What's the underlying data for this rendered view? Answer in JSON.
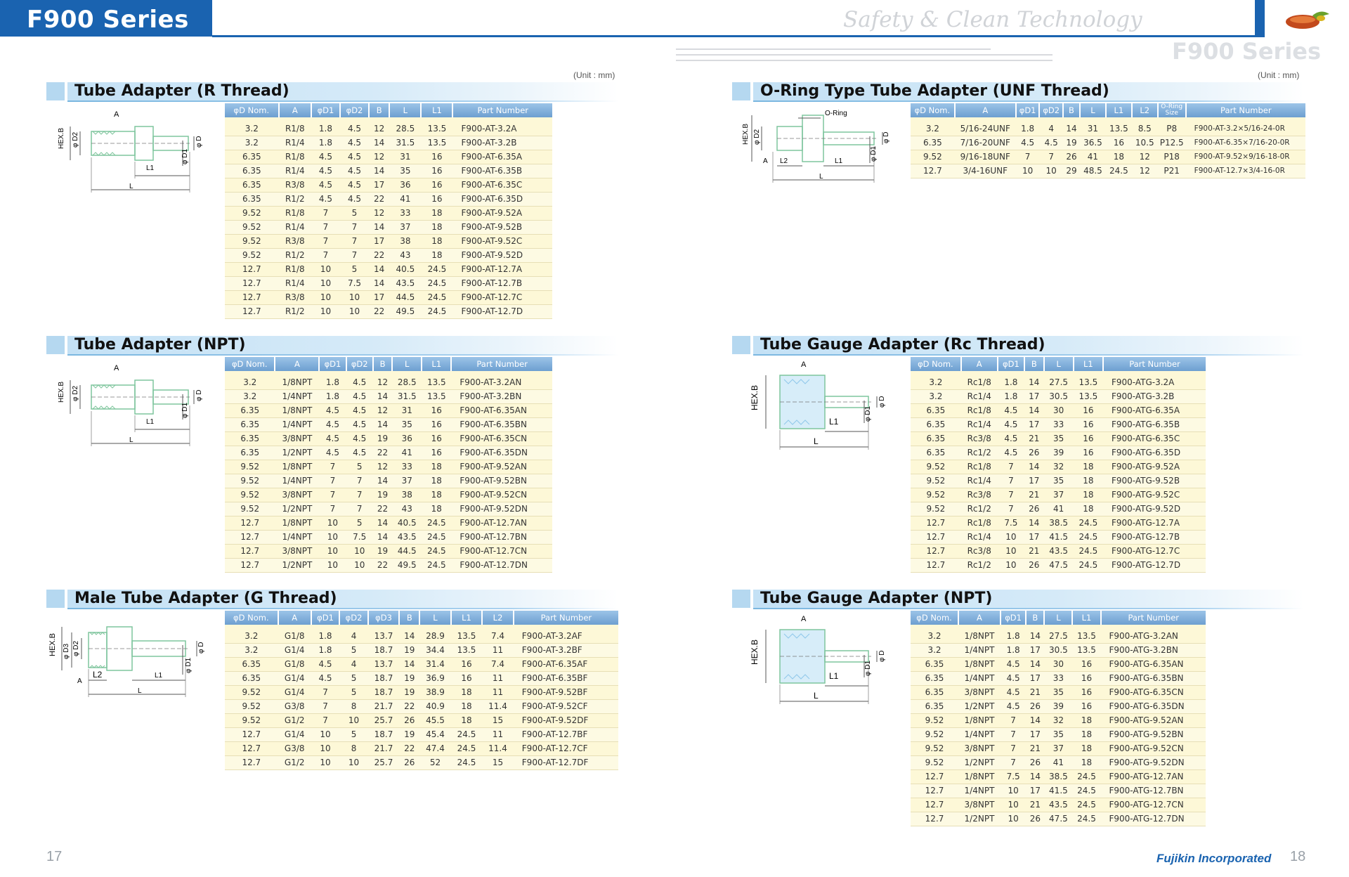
{
  "header": {
    "series_label": "F900 Series",
    "tagline": "Safety & Clean Technology",
    "side_title": "F900 Series",
    "colors": {
      "brand_blue": "#1a63b0",
      "section_band": "#c4e1f5",
      "table_row": "#fdf8d7"
    }
  },
  "units": {
    "left": "(Unit : mm)",
    "right": "(Unit : mm)"
  },
  "footer": {
    "page_left": "17",
    "page_right": "18",
    "brand": "Fujikin Incorporated"
  },
  "sections": {
    "r_thread": {
      "title": "Tube Adapter (R Thread)",
      "diagram_labels": {
        "a": "A",
        "hexb": "HEX.B",
        "d2": "φ D2",
        "d": "φ D",
        "d1": "φ D1",
        "l1": "L1",
        "l": "L"
      },
      "headers": [
        "φD Nom.",
        "A",
        "φD1",
        "φD2",
        "B",
        "L",
        "L1",
        "Part Number"
      ],
      "rows": [
        [
          "3.2",
          "R1/8",
          "1.8",
          "4.5",
          "12",
          "28.5",
          "13.5",
          "F900-AT-3.2A"
        ],
        [
          "3.2",
          "R1/4",
          "1.8",
          "4.5",
          "14",
          "31.5",
          "13.5",
          "F900-AT-3.2B"
        ],
        [
          "6.35",
          "R1/8",
          "4.5",
          "4.5",
          "12",
          "31",
          "16",
          "F900-AT-6.35A"
        ],
        [
          "6.35",
          "R1/4",
          "4.5",
          "4.5",
          "14",
          "35",
          "16",
          "F900-AT-6.35B"
        ],
        [
          "6.35",
          "R3/8",
          "4.5",
          "4.5",
          "17",
          "36",
          "16",
          "F900-AT-6.35C"
        ],
        [
          "6.35",
          "R1/2",
          "4.5",
          "4.5",
          "22",
          "41",
          "16",
          "F900-AT-6.35D"
        ],
        [
          "9.52",
          "R1/8",
          "7",
          "5",
          "12",
          "33",
          "18",
          "F900-AT-9.52A"
        ],
        [
          "9.52",
          "R1/4",
          "7",
          "7",
          "14",
          "37",
          "18",
          "F900-AT-9.52B"
        ],
        [
          "9.52",
          "R3/8",
          "7",
          "7",
          "17",
          "38",
          "18",
          "F900-AT-9.52C"
        ],
        [
          "9.52",
          "R1/2",
          "7",
          "7",
          "22",
          "43",
          "18",
          "F900-AT-9.52D"
        ],
        [
          "12.7",
          "R1/8",
          "10",
          "5",
          "14",
          "40.5",
          "24.5",
          "F900-AT-12.7A"
        ],
        [
          "12.7",
          "R1/4",
          "10",
          "7.5",
          "14",
          "43.5",
          "24.5",
          "F900-AT-12.7B"
        ],
        [
          "12.7",
          "R3/8",
          "10",
          "10",
          "17",
          "44.5",
          "24.5",
          "F900-AT-12.7C"
        ],
        [
          "12.7",
          "R1/2",
          "10",
          "10",
          "22",
          "49.5",
          "24.5",
          "F900-AT-12.7D"
        ]
      ]
    },
    "npt": {
      "title": "Tube Adapter (NPT)",
      "diagram_labels": {
        "a": "A",
        "hexb": "HEX.B",
        "d2": "φ D2",
        "d": "φ D",
        "d1": "φ D1",
        "l1": "L1",
        "l": "L"
      },
      "headers": [
        "φD Nom.",
        "A",
        "φD1",
        "φD2",
        "B",
        "L",
        "L1",
        "Part Number"
      ],
      "rows": [
        [
          "3.2",
          "1/8NPT",
          "1.8",
          "4.5",
          "12",
          "28.5",
          "13.5",
          "F900-AT-3.2AN"
        ],
        [
          "3.2",
          "1/4NPT",
          "1.8",
          "4.5",
          "14",
          "31.5",
          "13.5",
          "F900-AT-3.2BN"
        ],
        [
          "6.35",
          "1/8NPT",
          "4.5",
          "4.5",
          "12",
          "31",
          "16",
          "F900-AT-6.35AN"
        ],
        [
          "6.35",
          "1/4NPT",
          "4.5",
          "4.5",
          "14",
          "35",
          "16",
          "F900-AT-6.35BN"
        ],
        [
          "6.35",
          "3/8NPT",
          "4.5",
          "4.5",
          "19",
          "36",
          "16",
          "F900-AT-6.35CN"
        ],
        [
          "6.35",
          "1/2NPT",
          "4.5",
          "4.5",
          "22",
          "41",
          "16",
          "F900-AT-6.35DN"
        ],
        [
          "9.52",
          "1/8NPT",
          "7",
          "5",
          "12",
          "33",
          "18",
          "F900-AT-9.52AN"
        ],
        [
          "9.52",
          "1/4NPT",
          "7",
          "7",
          "14",
          "37",
          "18",
          "F900-AT-9.52BN"
        ],
        [
          "9.52",
          "3/8NPT",
          "7",
          "7",
          "19",
          "38",
          "18",
          "F900-AT-9.52CN"
        ],
        [
          "9.52",
          "1/2NPT",
          "7",
          "7",
          "22",
          "43",
          "18",
          "F900-AT-9.52DN"
        ],
        [
          "12.7",
          "1/8NPT",
          "10",
          "5",
          "14",
          "40.5",
          "24.5",
          "F900-AT-12.7AN"
        ],
        [
          "12.7",
          "1/4NPT",
          "10",
          "7.5",
          "14",
          "43.5",
          "24.5",
          "F900-AT-12.7BN"
        ],
        [
          "12.7",
          "3/8NPT",
          "10",
          "10",
          "19",
          "44.5",
          "24.5",
          "F900-AT-12.7CN"
        ],
        [
          "12.7",
          "1/2NPT",
          "10",
          "10",
          "22",
          "49.5",
          "24.5",
          "F900-AT-12.7DN"
        ]
      ]
    },
    "g_thread": {
      "title": "Male Tube Adapter (G Thread)",
      "diagram_labels": {
        "a": "A",
        "hexb": "HEX.B",
        "d3": "φ D3",
        "d2": "φ D2",
        "d": "φ D",
        "d1": "φ D1",
        "l2": "L2",
        "l1": "L1",
        "l": "L"
      },
      "headers": [
        "φD Nom.",
        "A",
        "φD1",
        "φD2",
        "φD3",
        "B",
        "L",
        "L1",
        "L2",
        "Part Number"
      ],
      "rows": [
        [
          "3.2",
          "G1/8",
          "1.8",
          "4",
          "13.7",
          "14",
          "28.9",
          "13.5",
          "7.4",
          "F900-AT-3.2AF"
        ],
        [
          "3.2",
          "G1/4",
          "1.8",
          "5",
          "18.7",
          "19",
          "34.4",
          "13.5",
          "11",
          "F900-AT-3.2BF"
        ],
        [
          "6.35",
          "G1/8",
          "4.5",
          "4",
          "13.7",
          "14",
          "31.4",
          "16",
          "7.4",
          "F900-AT-6.35AF"
        ],
        [
          "6.35",
          "G1/4",
          "4.5",
          "5",
          "18.7",
          "19",
          "36.9",
          "16",
          "11",
          "F900-AT-6.35BF"
        ],
        [
          "9.52",
          "G1/4",
          "7",
          "5",
          "18.7",
          "19",
          "38.9",
          "18",
          "11",
          "F900-AT-9.52BF"
        ],
        [
          "9.52",
          "G3/8",
          "7",
          "8",
          "21.7",
          "22",
          "40.9",
          "18",
          "11.4",
          "F900-AT-9.52CF"
        ],
        [
          "9.52",
          "G1/2",
          "7",
          "10",
          "25.7",
          "26",
          "45.5",
          "18",
          "15",
          "F900-AT-9.52DF"
        ],
        [
          "12.7",
          "G1/4",
          "10",
          "5",
          "18.7",
          "19",
          "45.4",
          "24.5",
          "11",
          "F900-AT-12.7BF"
        ],
        [
          "12.7",
          "G3/8",
          "10",
          "8",
          "21.7",
          "22",
          "47.4",
          "24.5",
          "11.4",
          "F900-AT-12.7CF"
        ],
        [
          "12.7",
          "G1/2",
          "10",
          "10",
          "25.7",
          "26",
          "52",
          "24.5",
          "15",
          "F900-AT-12.7DF"
        ]
      ]
    },
    "oring": {
      "title": "O-Ring Type Tube Adapter (UNF Thread)",
      "diagram_labels": {
        "oring": "O-Ring",
        "hexb": "HEX.B",
        "d2": "φ D2",
        "d": "φ D",
        "d1": "φ D1",
        "a": "A",
        "l2": "L2",
        "l1": "L1",
        "l": "L"
      },
      "headers": [
        "φD Nom.",
        "A",
        "φD1",
        "φD2",
        "B",
        "L",
        "L1",
        "L2",
        "O-Ring Size",
        "Part Number"
      ],
      "rows": [
        [
          "3.2",
          "5/16-24UNF",
          "1.8",
          "4",
          "14",
          "31",
          "13.5",
          "8.5",
          "P8",
          "F900-AT-3.2×5/16-24-0R"
        ],
        [
          "6.35",
          "7/16-20UNF",
          "4.5",
          "4.5",
          "19",
          "36.5",
          "16",
          "10.5",
          "P12.5",
          "F900-AT-6.35×7/16-20-0R"
        ],
        [
          "9.52",
          "9/16-18UNF",
          "7",
          "7",
          "26",
          "41",
          "18",
          "12",
          "P18",
          "F900-AT-9.52×9/16-18-0R"
        ],
        [
          "12.7",
          "3/4-16UNF",
          "10",
          "10",
          "29",
          "48.5",
          "24.5",
          "12",
          "P21",
          "F900-AT-12.7×3/4-16-0R"
        ]
      ]
    },
    "rc_gauge": {
      "title": "Tube Gauge Adapter (Rc Thread)",
      "diagram_labels": {
        "a": "A",
        "hexb": "HEX.B",
        "d": "φ D",
        "d1": "φ D1",
        "l1": "L1",
        "l": "L"
      },
      "headers": [
        "φD Nom.",
        "A",
        "φD1",
        "B",
        "L",
        "L1",
        "Part Number"
      ],
      "rows": [
        [
          "3.2",
          "Rc1/8",
          "1.8",
          "14",
          "27.5",
          "13.5",
          "F900-ATG-3.2A"
        ],
        [
          "3.2",
          "Rc1/4",
          "1.8",
          "17",
          "30.5",
          "13.5",
          "F900-ATG-3.2B"
        ],
        [
          "6.35",
          "Rc1/8",
          "4.5",
          "14",
          "30",
          "16",
          "F900-ATG-6.35A"
        ],
        [
          "6.35",
          "Rc1/4",
          "4.5",
          "17",
          "33",
          "16",
          "F900-ATG-6.35B"
        ],
        [
          "6.35",
          "Rc3/8",
          "4.5",
          "21",
          "35",
          "16",
          "F900-ATG-6.35C"
        ],
        [
          "6.35",
          "Rc1/2",
          "4.5",
          "26",
          "39",
          "16",
          "F900-ATG-6.35D"
        ],
        [
          "9.52",
          "Rc1/8",
          "7",
          "14",
          "32",
          "18",
          "F900-ATG-9.52A"
        ],
        [
          "9.52",
          "Rc1/4",
          "7",
          "17",
          "35",
          "18",
          "F900-ATG-9.52B"
        ],
        [
          "9.52",
          "Rc3/8",
          "7",
          "21",
          "37",
          "18",
          "F900-ATG-9.52C"
        ],
        [
          "9.52",
          "Rc1/2",
          "7",
          "26",
          "41",
          "18",
          "F900-ATG-9.52D"
        ],
        [
          "12.7",
          "Rc1/8",
          "7.5",
          "14",
          "38.5",
          "24.5",
          "F900-ATG-12.7A"
        ],
        [
          "12.7",
          "Rc1/4",
          "10",
          "17",
          "41.5",
          "24.5",
          "F900-ATG-12.7B"
        ],
        [
          "12.7",
          "Rc3/8",
          "10",
          "21",
          "43.5",
          "24.5",
          "F900-ATG-12.7C"
        ],
        [
          "12.7",
          "Rc1/2",
          "10",
          "26",
          "47.5",
          "24.5",
          "F900-ATG-12.7D"
        ]
      ]
    },
    "npt_gauge": {
      "title": "Tube Gauge Adapter (NPT)",
      "diagram_labels": {
        "a": "A",
        "hexb": "HEX.B",
        "d": "φ D",
        "d1": "φ D1",
        "l1": "L1",
        "l": "L"
      },
      "headers": [
        "φD Nom.",
        "A",
        "φD1",
        "B",
        "L",
        "L1",
        "Part Number"
      ],
      "rows": [
        [
          "3.2",
          "1/8NPT",
          "1.8",
          "14",
          "27.5",
          "13.5",
          "F900-ATG-3.2AN"
        ],
        [
          "3.2",
          "1/4NPT",
          "1.8",
          "17",
          "30.5",
          "13.5",
          "F900-ATG-3.2BN"
        ],
        [
          "6.35",
          "1/8NPT",
          "4.5",
          "14",
          "30",
          "16",
          "F900-ATG-6.35AN"
        ],
        [
          "6.35",
          "1/4NPT",
          "4.5",
          "17",
          "33",
          "16",
          "F900-ATG-6.35BN"
        ],
        [
          "6.35",
          "3/8NPT",
          "4.5",
          "21",
          "35",
          "16",
          "F900-ATG-6.35CN"
        ],
        [
          "6.35",
          "1/2NPT",
          "4.5",
          "26",
          "39",
          "16",
          "F900-ATG-6.35DN"
        ],
        [
          "9.52",
          "1/8NPT",
          "7",
          "14",
          "32",
          "18",
          "F900-ATG-9.52AN"
        ],
        [
          "9.52",
          "1/4NPT",
          "7",
          "17",
          "35",
          "18",
          "F900-ATG-9.52BN"
        ],
        [
          "9.52",
          "3/8NPT",
          "7",
          "21",
          "37",
          "18",
          "F900-ATG-9.52CN"
        ],
        [
          "9.52",
          "1/2NPT",
          "7",
          "26",
          "41",
          "18",
          "F900-ATG-9.52DN"
        ],
        [
          "12.7",
          "1/8NPT",
          "7.5",
          "14",
          "38.5",
          "24.5",
          "F900-ATG-12.7AN"
        ],
        [
          "12.7",
          "1/4NPT",
          "10",
          "17",
          "41.5",
          "24.5",
          "F900-ATG-12.7BN"
        ],
        [
          "12.7",
          "3/8NPT",
          "10",
          "21",
          "43.5",
          "24.5",
          "F900-ATG-12.7CN"
        ],
        [
          "12.7",
          "1/2NPT",
          "10",
          "26",
          "47.5",
          "24.5",
          "F900-ATG-12.7DN"
        ]
      ]
    }
  }
}
